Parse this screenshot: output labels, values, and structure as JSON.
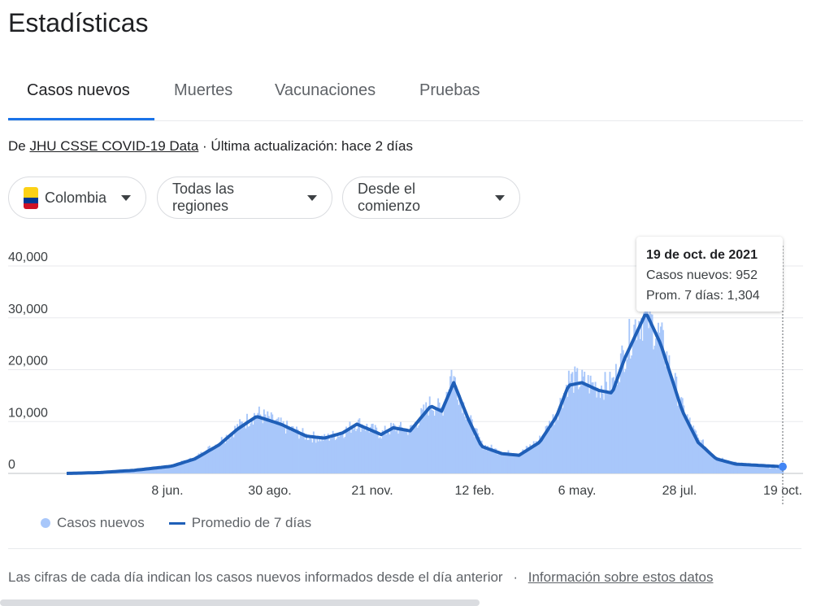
{
  "page_title": "Estadísticas",
  "tabs": [
    {
      "label": "Casos nuevos",
      "active": true
    },
    {
      "label": "Muertes",
      "active": false
    },
    {
      "label": "Vacunaciones",
      "active": false
    },
    {
      "label": "Pruebas",
      "active": false
    }
  ],
  "source": {
    "prefix": "De",
    "link": "JHU CSSE COVID-19 Data",
    "updated": "· Última actualización: hace 2 días"
  },
  "filters": {
    "country": "Colombia",
    "region": "Todas las regiones",
    "range": "Desde el comienzo",
    "flag_colors": [
      "#fcd116",
      "#003893",
      "#ce1126"
    ]
  },
  "tooltip": {
    "date": "19 de oct. de 2021",
    "cases_label": "Casos nuevos: 952",
    "avg_label": "Prom. 7 días: 1,304"
  },
  "legend": {
    "cases": "Casos nuevos",
    "avg": "Promedio de 7 días"
  },
  "footer": {
    "note": "Las cifras de cada día indican los casos nuevos informados desde el día anterior",
    "separator": "·",
    "link": "Información sobre estos datos"
  },
  "chart_data": {
    "type": "area",
    "x_tick_labels": [
      "8 jun.",
      "30 ago.",
      "21 nov.",
      "12 feb.",
      "6 may.",
      "28 jul.",
      "19 oct."
    ],
    "y_tick_labels": [
      "0",
      "10,000",
      "20,000",
      "30,000",
      "40,000"
    ],
    "y_ticks": [
      0,
      10000,
      20000,
      30000,
      40000
    ],
    "ylim": [
      0,
      40000
    ],
    "grid": true,
    "bar_color": "#a8c7fa",
    "line_color": "#1f5fb8",
    "series": [
      {
        "name": "Promedio de 7 días",
        "points": [
          {
            "x": "2020-03-06",
            "y": 0
          },
          {
            "x": "2020-04-01",
            "y": 150
          },
          {
            "x": "2020-05-01",
            "y": 600
          },
          {
            "x": "2020-06-01",
            "y": 1400
          },
          {
            "x": "2020-06-20",
            "y": 2800
          },
          {
            "x": "2020-07-10",
            "y": 5500
          },
          {
            "x": "2020-07-25",
            "y": 8500
          },
          {
            "x": "2020-08-10",
            "y": 11000
          },
          {
            "x": "2020-08-30",
            "y": 9500
          },
          {
            "x": "2020-09-20",
            "y": 7200
          },
          {
            "x": "2020-10-05",
            "y": 6800
          },
          {
            "x": "2020-10-20",
            "y": 7800
          },
          {
            "x": "2020-11-01",
            "y": 9500
          },
          {
            "x": "2020-11-21",
            "y": 7500
          },
          {
            "x": "2020-12-01",
            "y": 8800
          },
          {
            "x": "2020-12-15",
            "y": 8200
          },
          {
            "x": "2021-01-01",
            "y": 13000
          },
          {
            "x": "2021-01-10",
            "y": 12000
          },
          {
            "x": "2021-01-20",
            "y": 17500
          },
          {
            "x": "2021-02-01",
            "y": 10500
          },
          {
            "x": "2021-02-12",
            "y": 5200
          },
          {
            "x": "2021-03-01",
            "y": 3800
          },
          {
            "x": "2021-03-15",
            "y": 3500
          },
          {
            "x": "2021-04-01",
            "y": 6000
          },
          {
            "x": "2021-04-15",
            "y": 11000
          },
          {
            "x": "2021-04-25",
            "y": 17000
          },
          {
            "x": "2021-05-06",
            "y": 17500
          },
          {
            "x": "2021-05-20",
            "y": 16000
          },
          {
            "x": "2021-05-31",
            "y": 15500
          },
          {
            "x": "2021-06-10",
            "y": 22000
          },
          {
            "x": "2021-06-20",
            "y": 27000
          },
          {
            "x": "2021-06-28",
            "y": 31000
          },
          {
            "x": "2021-07-10",
            "y": 25000
          },
          {
            "x": "2021-07-28",
            "y": 12000
          },
          {
            "x": "2021-08-10",
            "y": 6000
          },
          {
            "x": "2021-08-25",
            "y": 2800
          },
          {
            "x": "2021-09-10",
            "y": 1800
          },
          {
            "x": "2021-10-19",
            "y": 1304
          }
        ]
      },
      {
        "name": "Casos nuevos",
        "points": [
          {
            "x": "2020-06-01",
            "y": 1600
          },
          {
            "x": "2020-06-20",
            "y": 3200
          },
          {
            "x": "2020-07-10",
            "y": 6500
          },
          {
            "x": "2020-07-25",
            "y": 9500
          },
          {
            "x": "2020-08-10",
            "y": 12500
          },
          {
            "x": "2020-08-30",
            "y": 10000
          },
          {
            "x": "2020-09-20",
            "y": 7800
          },
          {
            "x": "2020-10-05",
            "y": 7200
          },
          {
            "x": "2020-10-20",
            "y": 8500
          },
          {
            "x": "2020-11-01",
            "y": 10500
          },
          {
            "x": "2020-11-21",
            "y": 8200
          },
          {
            "x": "2020-12-01",
            "y": 9500
          },
          {
            "x": "2020-12-15",
            "y": 9000
          },
          {
            "x": "2021-01-01",
            "y": 14500
          },
          {
            "x": "2021-01-10",
            "y": 13000
          },
          {
            "x": "2021-01-18",
            "y": 21000
          },
          {
            "x": "2021-02-01",
            "y": 11500
          },
          {
            "x": "2021-02-12",
            "y": 6000
          },
          {
            "x": "2021-03-01",
            "y": 4300
          },
          {
            "x": "2021-03-15",
            "y": 4000
          },
          {
            "x": "2021-04-01",
            "y": 7000
          },
          {
            "x": "2021-04-15",
            "y": 12500
          },
          {
            "x": "2021-04-25",
            "y": 19500
          },
          {
            "x": "2021-05-06",
            "y": 19000
          },
          {
            "x": "2021-05-20",
            "y": 18000
          },
          {
            "x": "2021-05-31",
            "y": 18500
          },
          {
            "x": "2021-06-10",
            "y": 25000
          },
          {
            "x": "2021-06-20",
            "y": 31500
          },
          {
            "x": "2021-06-28",
            "y": 33000
          },
          {
            "x": "2021-07-10",
            "y": 28000
          },
          {
            "x": "2021-07-28",
            "y": 13500
          },
          {
            "x": "2021-08-10",
            "y": 7000
          },
          {
            "x": "2021-08-25",
            "y": 3500
          },
          {
            "x": "2021-09-10",
            "y": 2100
          },
          {
            "x": "2021-10-19",
            "y": 952
          }
        ]
      }
    ]
  }
}
